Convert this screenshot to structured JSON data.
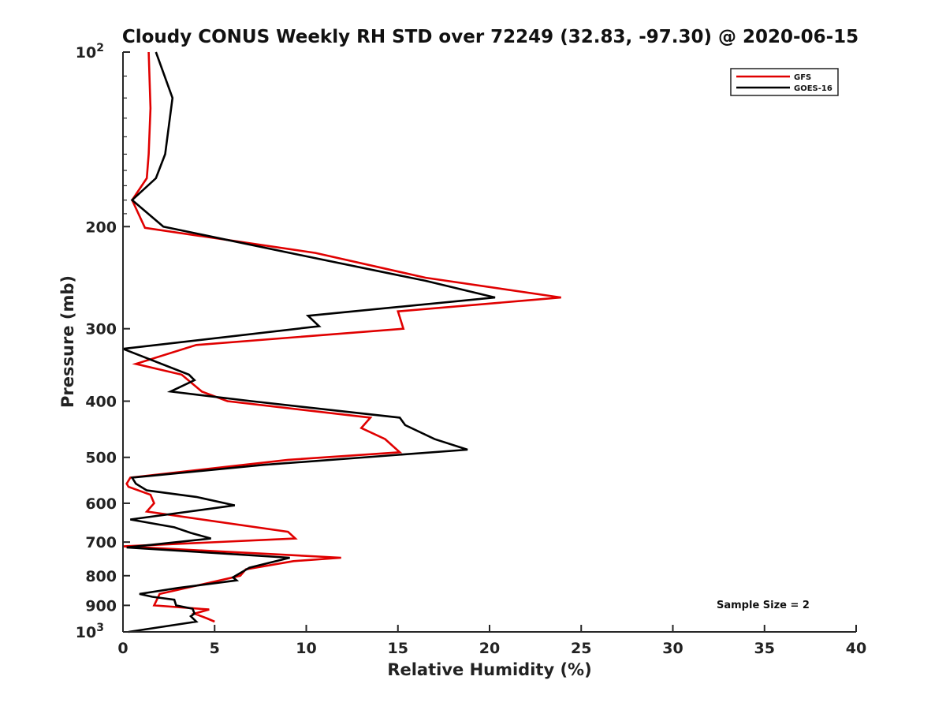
{
  "chart_data": {
    "type": "line",
    "title": "Cloudy CONUS Weekly RH STD over 72249 (32.83, -97.30) @ 2020-06-15",
    "xlabel": "Relative Humidity (%)",
    "ylabel": "Pressure (mb)",
    "xlim": [
      0,
      40
    ],
    "ylim": [
      100,
      1000
    ],
    "yscale": "log",
    "y_reversed": true,
    "grid": false,
    "legend_position": "top-right",
    "x_ticks": [
      0,
      5,
      10,
      15,
      20,
      25,
      30,
      35,
      40
    ],
    "y_ticks": [
      {
        "value": 100,
        "label": "10",
        "sup": "2"
      },
      {
        "value": 200,
        "label": "200",
        "sup": ""
      },
      {
        "value": 300,
        "label": "300",
        "sup": ""
      },
      {
        "value": 400,
        "label": "400",
        "sup": ""
      },
      {
        "value": 500,
        "label": "500",
        "sup": ""
      },
      {
        "value": 600,
        "label": "600",
        "sup": ""
      },
      {
        "value": 700,
        "label": "700",
        "sup": ""
      },
      {
        "value": 800,
        "label": "800",
        "sup": ""
      },
      {
        "value": 900,
        "label": "900",
        "sup": ""
      },
      {
        "value": 1000,
        "label": "10",
        "sup": "3"
      }
    ],
    "annotation": "Sample Size = 2",
    "series": [
      {
        "name": "GFS",
        "color": "#e00000",
        "points": [
          [
            1.4,
            100
          ],
          [
            1.5,
            125
          ],
          [
            1.4,
            150
          ],
          [
            1.3,
            165
          ],
          [
            0.5,
            180
          ],
          [
            1.2,
            201
          ],
          [
            10.5,
            222
          ],
          [
            16.5,
            245
          ],
          [
            23.9,
            265
          ],
          [
            15.0,
            280
          ],
          [
            15.3,
            300
          ],
          [
            4.0,
            320
          ],
          [
            0.7,
            345
          ],
          [
            3.2,
            360
          ],
          [
            4.3,
            385
          ],
          [
            5.7,
            400
          ],
          [
            13.5,
            427
          ],
          [
            13.0,
            445
          ],
          [
            14.3,
            465
          ],
          [
            15.1,
            490
          ],
          [
            9.0,
            505
          ],
          [
            0.4,
            542
          ],
          [
            0.2,
            555
          ],
          [
            0.3,
            562
          ],
          [
            1.5,
            580
          ],
          [
            1.7,
            600
          ],
          [
            1.3,
            620
          ],
          [
            9.0,
            672
          ],
          [
            9.4,
            690
          ],
          [
            0.0,
            712
          ],
          [
            11.9,
            745
          ],
          [
            9.3,
            755
          ],
          [
            6.7,
            780
          ],
          [
            6.4,
            800
          ],
          [
            2.0,
            860
          ],
          [
            1.7,
            900
          ],
          [
            4.7,
            915
          ],
          [
            3.9,
            930
          ],
          [
            4.6,
            948
          ],
          [
            5.0,
            960
          ]
        ]
      },
      {
        "name": "GOES-16",
        "color": "#000000",
        "points": [
          [
            1.8,
            100
          ],
          [
            2.7,
            120
          ],
          [
            2.3,
            150
          ],
          [
            1.8,
            165
          ],
          [
            0.5,
            180
          ],
          [
            2.2,
            200
          ],
          [
            10.0,
            225
          ],
          [
            16.5,
            248
          ],
          [
            20.3,
            265
          ],
          [
            10.1,
            285
          ],
          [
            10.7,
            297
          ],
          [
            0.0,
            325
          ],
          [
            3.6,
            360
          ],
          [
            3.9,
            368
          ],
          [
            2.6,
            385
          ],
          [
            7.0,
            400
          ],
          [
            15.1,
            427
          ],
          [
            15.4,
            440
          ],
          [
            17.0,
            465
          ],
          [
            18.8,
            485
          ],
          [
            7.7,
            515
          ],
          [
            0.5,
            542
          ],
          [
            0.7,
            555
          ],
          [
            1.3,
            570
          ],
          [
            4.0,
            585
          ],
          [
            6.1,
            605
          ],
          [
            0.4,
            640
          ],
          [
            2.8,
            660
          ],
          [
            3.7,
            675
          ],
          [
            4.8,
            690
          ],
          [
            0.2,
            715
          ],
          [
            9.1,
            745
          ],
          [
            6.9,
            775
          ],
          [
            6.0,
            805
          ],
          [
            6.2,
            815
          ],
          [
            3.0,
            840
          ],
          [
            0.9,
            860
          ],
          [
            1.6,
            870
          ],
          [
            2.8,
            880
          ],
          [
            2.9,
            900
          ],
          [
            3.8,
            912
          ],
          [
            3.9,
            930
          ],
          [
            3.7,
            940
          ],
          [
            4.0,
            960
          ],
          [
            0.3,
            1000
          ]
        ]
      }
    ]
  }
}
